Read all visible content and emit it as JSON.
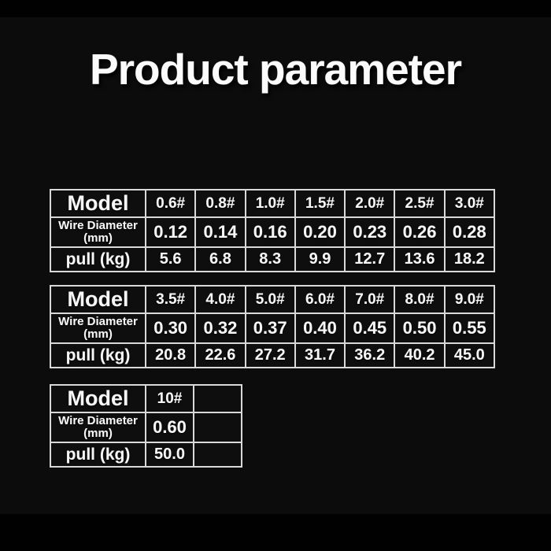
{
  "page": {
    "title": "Product parameter"
  },
  "colors": {
    "background": "#0c0c0c",
    "top_bottom_bars": "#010101",
    "table_border": "#d9d9d9",
    "text": "#f7f7f7"
  },
  "tables": [
    {
      "name": "spec-table-1",
      "rows": [
        {
          "label": "Model",
          "style": "model",
          "values": [
            "0.6#",
            "0.8#",
            "1.0#",
            "1.5#",
            "2.0#",
            "2.5#",
            "3.0#"
          ]
        },
        {
          "label": "Wire Diameter\n(mm)",
          "style": "diameter",
          "values": [
            "0.12",
            "0.14",
            "0.16",
            "0.20",
            "0.23",
            "0.26",
            "0.28"
          ]
        },
        {
          "label": "pull (kg)",
          "style": "pull",
          "values": [
            "5.6",
            "6.8",
            "8.3",
            "9.9",
            "12.7",
            "13.6",
            "18.2"
          ]
        }
      ]
    },
    {
      "name": "spec-table-2",
      "rows": [
        {
          "label": "Model",
          "style": "model",
          "values": [
            "3.5#",
            "4.0#",
            "5.0#",
            "6.0#",
            "7.0#",
            "8.0#",
            "9.0#"
          ]
        },
        {
          "label": "Wire Diameter\n(mm)",
          "style": "diameter",
          "values": [
            "0.30",
            "0.32",
            "0.37",
            "0.40",
            "0.45",
            "0.50",
            "0.55"
          ]
        },
        {
          "label": "pull (kg)",
          "style": "pull",
          "values": [
            "20.8",
            "22.6",
            "27.2",
            "31.7",
            "36.2",
            "40.2",
            "45.0"
          ]
        }
      ]
    },
    {
      "name": "spec-table-3",
      "rows": [
        {
          "label": "Model",
          "style": "model",
          "values": [
            "10#",
            ""
          ]
        },
        {
          "label": "Wire Diameter\n(mm)",
          "style": "diameter",
          "values": [
            "0.60",
            ""
          ]
        },
        {
          "label": "pull (kg)",
          "style": "pull",
          "values": [
            "50.0",
            ""
          ]
        }
      ]
    }
  ]
}
